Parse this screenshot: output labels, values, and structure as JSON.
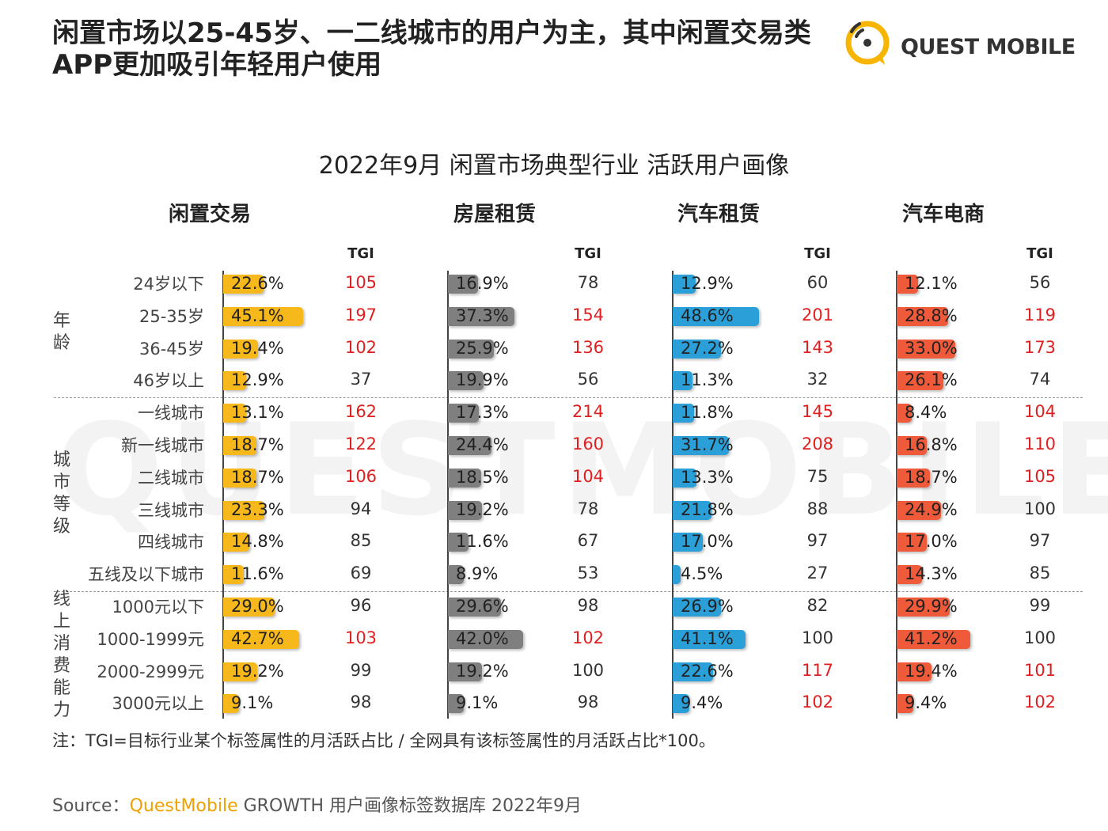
{
  "headline": {
    "line1": "闲置市场以25-45岁、一二线城市的用户为主，其中闲置交易类",
    "line2": "APP更加吸引年轻用户使用"
  },
  "brand": {
    "name": "QUEST MOBILE",
    "accent": "#f7b500"
  },
  "watermark": "QUESTMOBILE",
  "chart_data": {
    "type": "bar",
    "title": "2022年9月 闲置市场典型行业 活跃用户画像",
    "tgi_header": "TGI",
    "category_groups": [
      {
        "label": "年龄",
        "chars": [
          "年",
          "龄"
        ],
        "rows": 4
      },
      {
        "label": "城市等级",
        "chars": [
          "城",
          "市",
          "等",
          "级"
        ],
        "rows": 6
      },
      {
        "label": "线上消费能力",
        "chars": [
          "线",
          "上",
          "消",
          "费",
          "能",
          "力"
        ],
        "rows": 4
      }
    ],
    "categories": [
      "24岁以下",
      "25-35岁",
      "36-45岁",
      "46岁以上",
      "一线城市",
      "新一线城市",
      "二线城市",
      "三线城市",
      "四线城市",
      "五线及以下城市",
      "1000元以下",
      "1000-1999元",
      "2000-2999元",
      "3000元以上"
    ],
    "series": [
      {
        "name": "闲置交易",
        "color": "#f7b81c",
        "values": [
          22.6,
          45.1,
          19.4,
          12.9,
          13.1,
          18.7,
          18.7,
          23.3,
          14.8,
          11.6,
          29.0,
          42.7,
          19.2,
          9.1
        ],
        "labels": [
          "22.6%",
          "45.1%",
          "19.4%",
          "12.9%",
          "13.1%",
          "18.7%",
          "18.7%",
          "23.3%",
          "14.8%",
          "11.6%",
          "29.0%",
          "42.7%",
          "19.2%",
          "9.1%"
        ],
        "tgi": [
          "105",
          "197",
          "102",
          "37",
          "162",
          "122",
          "106",
          "94",
          "85",
          "69",
          "96",
          "103",
          "99",
          "98"
        ]
      },
      {
        "name": "房屋租赁",
        "color": "#7f7f7f",
        "values": [
          16.9,
          37.3,
          25.9,
          19.9,
          17.3,
          24.4,
          18.5,
          19.2,
          11.6,
          8.9,
          29.6,
          42.0,
          19.2,
          9.1
        ],
        "labels": [
          "16.9%",
          "37.3%",
          "25.9%",
          "19.9%",
          "17.3%",
          "24.4%",
          "18.5%",
          "19.2%",
          "11.6%",
          "8.9%",
          "29.6%",
          "42.0%",
          "19.2%",
          "9.1%"
        ],
        "tgi": [
          "78",
          "154",
          "136",
          "56",
          "214",
          "160",
          "104",
          "78",
          "67",
          "53",
          "98",
          "102",
          "100",
          "98"
        ]
      },
      {
        "name": "汽车租赁",
        "color": "#2a9fd8",
        "values": [
          12.9,
          48.6,
          27.2,
          11.3,
          11.8,
          31.7,
          13.3,
          21.8,
          17.0,
          4.5,
          26.9,
          41.1,
          22.6,
          9.4
        ],
        "labels": [
          "12.9%",
          "48.6%",
          "27.2%",
          "11.3%",
          "11.8%",
          "31.7%",
          "13.3%",
          "21.8%",
          "17.0%",
          "4.5%",
          "26.9%",
          "41.1%",
          "22.6%",
          "9.4%"
        ],
        "tgi": [
          "60",
          "201",
          "143",
          "32",
          "145",
          "208",
          "75",
          "88",
          "97",
          "27",
          "82",
          "100",
          "117",
          "102"
        ]
      },
      {
        "name": "汽车电商",
        "color": "#ef5a3a",
        "values": [
          12.1,
          28.8,
          33.0,
          26.1,
          8.4,
          16.8,
          18.7,
          24.9,
          17.0,
          14.3,
          29.9,
          41.2,
          19.4,
          9.4
        ],
        "labels": [
          "12.1%",
          "28.8%",
          "33.0%",
          "26.1%",
          "8.4%",
          "16.8%",
          "18.7%",
          "24.9%",
          "17.0%",
          "14.3%",
          "29.9%",
          "41.2%",
          "19.4%",
          "9.4%"
        ],
        "tgi": [
          "56",
          "119",
          "173",
          "74",
          "104",
          "110",
          "105",
          "100",
          "97",
          "85",
          "99",
          "100",
          "101",
          "102"
        ]
      }
    ],
    "tgi_highlight_threshold": 100,
    "colors": {
      "tgi_high": "#e02020",
      "tgi_normal": "#333333"
    }
  },
  "note": "注：TGI=目标行业某个标签属性的月活跃占比 / 全网具有该标签属性的月活跃占比*100。",
  "source": {
    "prefix": "Source：",
    "brand": "QuestMobile",
    "suffix": " GROWTH 用户画像标签数据库 2022年9月"
  }
}
